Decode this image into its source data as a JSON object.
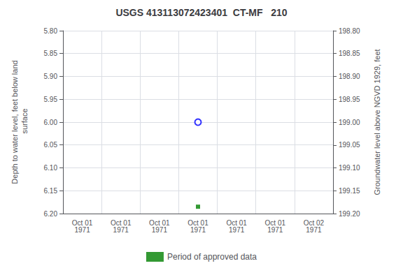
{
  "chart_data": {
    "type": "scatter",
    "title": "USGS 413113072423401  CT-MF   210",
    "ylabel": "Depth to water level, feet below land\n surface",
    "y2label": "Groundwater level above NGVD 1929, feet",
    "categories": [
      "Oct 01\n1971",
      "Oct 01\n1971",
      "Oct 01\n1971",
      "Oct 01\n1971",
      "Oct 01\n1971",
      "Oct 01\n1971",
      "Oct 02\n1971"
    ],
    "series": [
      {
        "color": "blue",
        "marker": "open_circle",
        "values": [
          null,
          null,
          null,
          6.0,
          null,
          null,
          null
        ]
      },
      {
        "name": "Period of approved data",
        "color": "#008000",
        "marker": "square",
        "values": [
          null,
          null,
          null,
          6.185,
          null,
          null,
          null
        ]
      }
    ],
    "ylim": [
      6.2,
      5.8
    ],
    "yticks": [
      {
        "value": 5.8,
        "label": "5.80"
      },
      5.85,
      {
        "value": 5.9,
        "label": "5.90"
      },
      5.95,
      {
        "value": 6.0,
        "label": "6.00"
      },
      6.05,
      {
        "value": 6.1,
        "label": "6.10"
      },
      6.15,
      {
        "value": 6.2,
        "label": "6.20"
      }
    ],
    "y2lim": [
      199.2,
      198.8
    ],
    "y2ticks": [
      {
        "value": 199.2,
        "label": "199.20"
      },
      199.15,
      {
        "value": 199.1,
        "label": "199.10"
      },
      199.05,
      {
        "value": 199.0,
        "label": "199.00"
      },
      198.95,
      {
        "value": 198.9,
        "label": "198.90"
      },
      198.85,
      {
        "value": 198.8,
        "label": "198.80"
      }
    ],
    "grid": true,
    "legend": "bottom"
  }
}
